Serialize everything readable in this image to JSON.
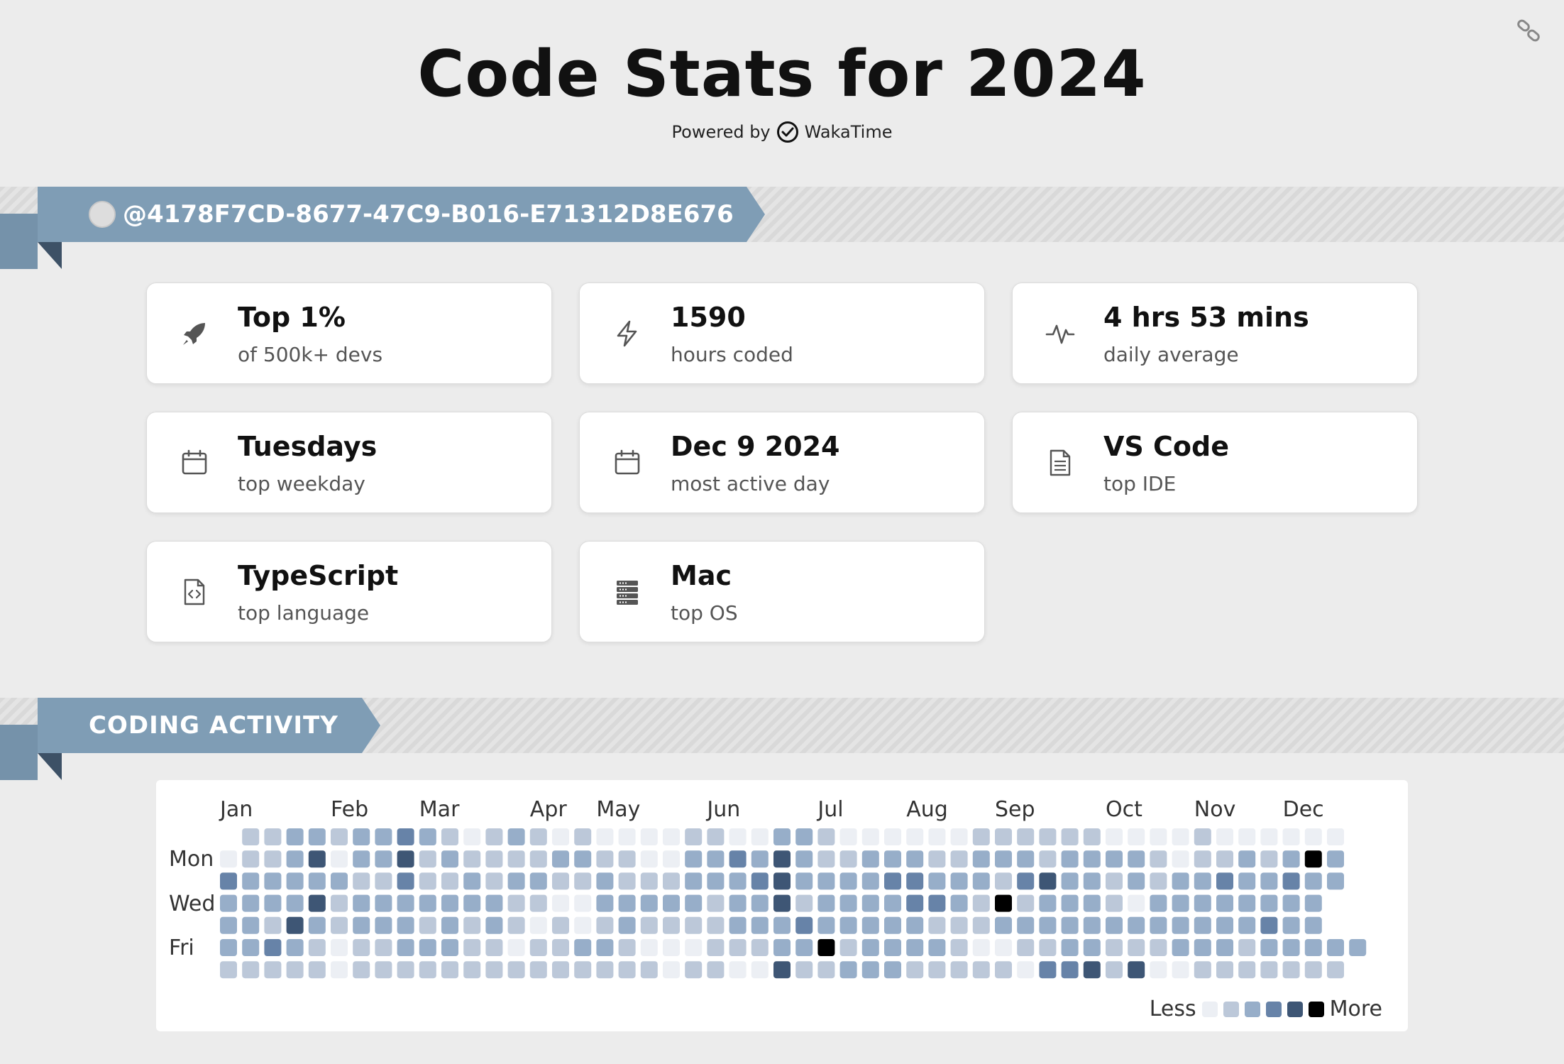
{
  "header": {
    "title": "Code Stats for 2024",
    "powered_prefix": "Powered by",
    "powered_brand": "WakaTime"
  },
  "user": {
    "handle": "@4178F7CD-8677-47C9-B016-E71312D8E676"
  },
  "stats": [
    {
      "icon": "rocket-icon",
      "value": "Top 1%",
      "label": "of 500k+ devs"
    },
    {
      "icon": "lightning-icon",
      "value": "1590",
      "label": "hours coded"
    },
    {
      "icon": "pulse-icon",
      "value": "4 hrs 53 mins",
      "label": "daily average"
    },
    {
      "icon": "calendar-icon",
      "value": "Tuesdays",
      "label": "top weekday"
    },
    {
      "icon": "calendar-icon",
      "value": "Dec 9 2024",
      "label": "most active day"
    },
    {
      "icon": "document-icon",
      "value": "VS Code",
      "label": "top IDE"
    },
    {
      "icon": "code-file-icon",
      "value": "TypeScript",
      "label": "top language"
    },
    {
      "icon": "server-icon",
      "value": "Mac",
      "label": "top OS"
    }
  ],
  "activity": {
    "section_title": "CODING ACTIVITY",
    "months": [
      "Jan",
      "Feb",
      "Mar",
      "Apr",
      "May",
      "Jun",
      "Jul",
      "Aug",
      "Sep",
      "Oct",
      "Nov",
      "Dec"
    ],
    "month_weeks": [
      0,
      5,
      9,
      14,
      17,
      22,
      27,
      31,
      35,
      40,
      44,
      48
    ],
    "day_labels": [
      {
        "row": 1,
        "label": "Mon"
      },
      {
        "row": 3,
        "label": "Wed"
      },
      {
        "row": 5,
        "label": "Fri"
      }
    ],
    "legend_less": "Less",
    "legend_more": "More",
    "level_colors": [
      "#eceff4",
      "#bcc8d9",
      "#97aec9",
      "#6783a8",
      "#3e5675",
      "#000000"
    ],
    "rows": [
      "-11221223210121010000110022100000011111100001000000",
      "011240224121111221100223242112221122212222101121252",
      "322222113112122112111222342222332221342212122322322",
      "22224122222221100222221224122223321512221022222222",
      "22142122212121010121111222322222111222222222222322",
      "2232101122211011221000111225122221001122111222122222",
      "111110111111111111110110041122211111033414001111111"
    ]
  }
}
